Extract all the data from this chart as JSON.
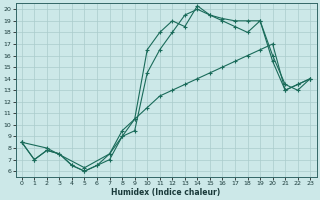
{
  "xlabel": "Humidex (Indice chaleur)",
  "ylabel": "",
  "xlim": [
    -0.5,
    23.5
  ],
  "ylim": [
    5.5,
    20.5
  ],
  "xticks": [
    0,
    1,
    2,
    3,
    4,
    5,
    6,
    7,
    8,
    9,
    10,
    11,
    12,
    13,
    14,
    15,
    16,
    17,
    18,
    19,
    20,
    21,
    22,
    23
  ],
  "yticks": [
    6,
    7,
    8,
    9,
    10,
    11,
    12,
    13,
    14,
    15,
    16,
    17,
    18,
    19,
    20
  ],
  "background_color": "#cce8e8",
  "grid_color": "#aacccc",
  "line_color": "#1a6b5a",
  "line1_x": [
    0,
    1,
    2,
    3,
    4,
    5,
    6,
    7,
    8,
    9,
    10,
    11,
    12,
    13,
    14,
    15,
    16,
    17,
    18,
    19,
    20,
    21,
    22,
    23
  ],
  "line1_y": [
    8.5,
    7.0,
    7.8,
    7.5,
    6.5,
    6.0,
    6.5,
    7.5,
    9.5,
    10.5,
    16.5,
    18.0,
    19.0,
    18.5,
    20.3,
    19.5,
    19.2,
    19.0,
    19.0,
    19.0,
    15.5,
    13.0,
    13.5,
    14.0
  ],
  "line2_x": [
    0,
    1,
    2,
    3,
    4,
    5,
    6,
    7,
    8,
    9,
    10,
    11,
    12,
    13,
    14,
    15,
    16,
    17,
    18,
    19,
    20,
    21,
    22,
    23
  ],
  "line2_y": [
    8.5,
    7.0,
    7.8,
    7.5,
    6.5,
    6.0,
    6.5,
    7.0,
    9.0,
    9.5,
    14.5,
    16.5,
    18.0,
    19.5,
    20.0,
    19.5,
    19.0,
    18.5,
    18.0,
    19.0,
    16.0,
    13.5,
    13.0,
    14.0
  ],
  "line3_x": [
    0,
    2,
    5,
    7,
    8,
    9,
    10,
    11,
    12,
    13,
    14,
    15,
    16,
    17,
    18,
    19,
    20,
    21,
    22,
    23
  ],
  "line3_y": [
    8.5,
    8.0,
    6.3,
    7.5,
    9.0,
    10.5,
    11.5,
    12.5,
    13.0,
    13.5,
    14.0,
    14.5,
    15.0,
    15.5,
    16.0,
    16.5,
    17.0,
    13.0,
    13.5,
    14.0
  ]
}
